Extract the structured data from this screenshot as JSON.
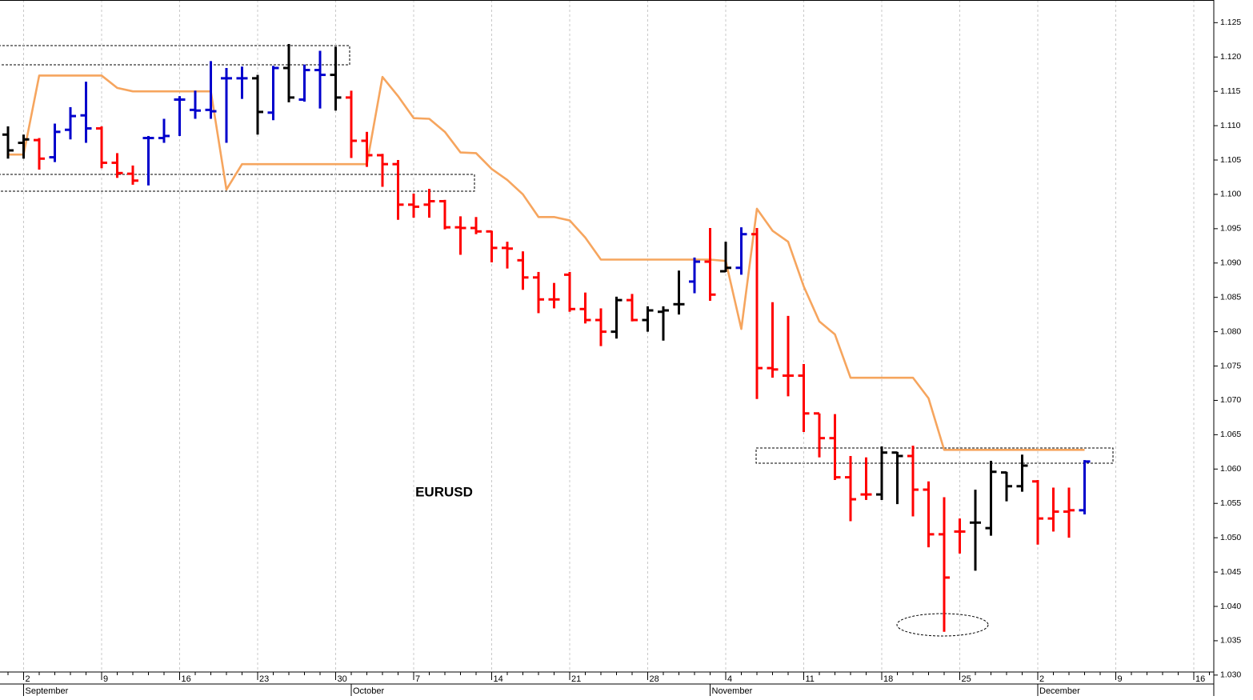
{
  "chart_data": {
    "type": "ohlc",
    "annotation": "EURUSD",
    "categories": [
      null,
      "2",
      null,
      null,
      null,
      null,
      "9",
      null,
      null,
      null,
      null,
      "16",
      null,
      null,
      null,
      null,
      "23",
      null,
      null,
      null,
      null,
      "30",
      null,
      null,
      null,
      null,
      "7",
      null,
      null,
      null,
      null,
      "14",
      null,
      null,
      null,
      null,
      "21",
      null,
      null,
      null,
      null,
      "28",
      null,
      null,
      null,
      null,
      "4",
      null,
      null,
      null,
      null,
      "11",
      null,
      null,
      null,
      null,
      "18",
      null,
      null,
      null,
      null,
      "25",
      null,
      null,
      null,
      null,
      "2",
      null,
      null,
      null,
      null,
      "9",
      null,
      null,
      null,
      null,
      "16",
      null
    ],
    "month_labels": [
      null,
      "September",
      null,
      null,
      null,
      null,
      null,
      null,
      null,
      null,
      null,
      null,
      null,
      null,
      null,
      null,
      null,
      null,
      null,
      null,
      null,
      null,
      "October",
      null,
      null,
      null,
      null,
      null,
      null,
      null,
      null,
      null,
      null,
      null,
      null,
      null,
      null,
      null,
      null,
      null,
      null,
      null,
      null,
      null,
      null,
      "November",
      null,
      null,
      null,
      null,
      null,
      null,
      null,
      null,
      null,
      null,
      null,
      null,
      null,
      null,
      null,
      null,
      null,
      null,
      null,
      null,
      "December",
      null,
      null,
      null,
      null,
      null,
      null,
      null,
      null,
      null,
      null,
      null
    ],
    "open": [
      1.1087,
      1.1075,
      1.1079,
      1.1054,
      1.1094,
      1.1115,
      1.1096,
      1.1046,
      1.103,
      1.1082,
      1.1082,
      1.1138,
      1.1123,
      1.1123,
      1.1169,
      1.1169,
      1.1169,
      1.1119,
      1.1184,
      1.1138,
      1.1181,
      1.1174,
      1.1141,
      1.1078,
      1.1057,
      1.1044,
      1.0985,
      1.0985,
      1.099,
      1.0952,
      1.0951,
      1.0946,
      1.0922,
      1.0904,
      1.0879,
      1.0847,
      1.0883,
      1.0833,
      1.0817,
      1.08,
      1.0846,
      1.0817,
      1.0829,
      1.084,
      1.0873,
      1.0902,
      1.0888,
      1.0893,
      1.0942,
      1.0747,
      1.0736,
      1.0736,
      1.0681,
      1.0645,
      1.0588,
      1.0563,
      1.0563,
      1.0624,
      1.0619,
      1.057,
      1.0505,
      1.0509,
      1.0522,
      1.0514,
      1.0595,
      1.0575,
      1.0582,
      1.0528,
      1.0538,
      1.054,
      null,
      null,
      null,
      null,
      null,
      null,
      null,
      null
    ],
    "high": [
      1.1099,
      1.1087,
      1.1082,
      1.1103,
      1.1127,
      1.1164,
      1.1099,
      1.106,
      1.1042,
      1.1085,
      1.111,
      1.1143,
      1.1151,
      1.1194,
      1.1184,
      1.1186,
      1.1174,
      1.1187,
      1.1219,
      1.1189,
      1.1209,
      1.1215,
      1.1151,
      1.1091,
      1.1059,
      1.105,
      1.1001,
      1.1008,
      1.0992,
      1.0968,
      1.0967,
      1.0947,
      1.0931,
      1.0917,
      1.0887,
      1.0871,
      1.0887,
      1.0857,
      1.0834,
      1.0851,
      1.0855,
      1.0837,
      1.0837,
      1.0889,
      1.0908,
      1.0951,
      1.0931,
      1.0952,
      1.0951,
      1.0843,
      1.0823,
      1.0753,
      1.0681,
      1.068,
      1.0619,
      1.0617,
      1.0633,
      1.0625,
      1.0634,
      1.0582,
      1.0559,
      1.0528,
      1.057,
      1.0612,
      1.0596,
      1.0621,
      1.0584,
      1.0573,
      1.0573,
      1.0613,
      null,
      null,
      null,
      null,
      null,
      null,
      null,
      null
    ],
    "low": [
      1.1052,
      1.1052,
      1.1036,
      1.1047,
      1.108,
      1.1075,
      1.1038,
      1.1024,
      1.1014,
      1.1013,
      1.1075,
      1.1085,
      1.111,
      1.111,
      1.1075,
      1.1139,
      1.1087,
      1.1108,
      1.1134,
      1.1135,
      1.1125,
      1.1122,
      1.1053,
      1.104,
      1.1011,
      1.0963,
      1.0966,
      1.0966,
      1.0949,
      1.0912,
      1.0942,
      1.0901,
      1.0892,
      1.0861,
      1.0827,
      1.0834,
      1.0829,
      1.0812,
      1.0779,
      1.079,
      1.0815,
      1.08,
      1.0787,
      1.0825,
      1.0856,
      1.0845,
      1.0887,
      1.0883,
      1.0702,
      1.0733,
      1.0706,
      1.0654,
      1.0617,
      1.0584,
      1.0524,
      1.0555,
      1.0555,
      1.0549,
      1.0531,
      1.0486,
      1.0363,
      1.0477,
      1.0452,
      1.0503,
      1.0553,
      1.0567,
      1.049,
      1.0509,
      1.05,
      1.0534,
      null,
      null,
      null,
      null,
      null,
      null,
      null,
      null
    ],
    "close": [
      1.1064,
      1.108,
      1.1052,
      1.1091,
      1.1114,
      1.1096,
      1.1046,
      1.1031,
      1.102,
      1.1082,
      1.1085,
      1.1138,
      1.1122,
      1.1121,
      1.1169,
      1.1169,
      1.112,
      1.1184,
      1.1141,
      1.1181,
      1.1174,
      1.1141,
      1.1078,
      1.1057,
      1.1044,
      1.0985,
      1.0982,
      1.099,
      1.0952,
      1.0951,
      1.0946,
      1.0922,
      1.0921,
      1.0879,
      1.0847,
      1.0847,
      1.0833,
      1.0817,
      1.08,
      1.0846,
      1.0817,
      1.0831,
      1.0831,
      1.084,
      1.0902,
      1.0854,
      1.0893,
      1.0942,
      1.0747,
      1.0745,
      1.0736,
      1.0681,
      1.0645,
      1.0588,
      1.0556,
      1.0563,
      1.0624,
      1.0619,
      1.057,
      1.0505,
      1.0442,
      1.0509,
      1.0522,
      1.0596,
      1.0575,
      1.0605,
      1.0528,
      1.0538,
      1.054,
      1.0611,
      null,
      null,
      null,
      null,
      null,
      null,
      null,
      null
    ],
    "bar_colors": [
      "#000000",
      "#000000",
      "#ff0000",
      "#0000cc",
      "#0000cc",
      "#0000cc",
      "#ff0000",
      "#ff0000",
      "#ff0000",
      "#0000cc",
      "#0000cc",
      "#0000cc",
      "#0000cc",
      "#0000cc",
      "#0000cc",
      "#0000cc",
      "#000000",
      "#0000cc",
      "#000000",
      "#0000cc",
      "#0000cc",
      "#000000",
      "#ff0000",
      "#ff0000",
      "#ff0000",
      "#ff0000",
      "#ff0000",
      "#ff0000",
      "#ff0000",
      "#ff0000",
      "#ff0000",
      "#ff0000",
      "#ff0000",
      "#ff0000",
      "#ff0000",
      "#ff0000",
      "#ff0000",
      "#ff0000",
      "#ff0000",
      "#000000",
      "#ff0000",
      "#000000",
      "#000000",
      "#000000",
      "#0000cc",
      "#ff0000",
      "#000000",
      "#0000cc",
      "#ff0000",
      "#ff0000",
      "#ff0000",
      "#ff0000",
      "#ff0000",
      "#ff0000",
      "#ff0000",
      "#ff0000",
      "#000000",
      "#000000",
      "#ff0000",
      "#ff0000",
      "#ff0000",
      "#ff0000",
      "#000000",
      "#000000",
      "#000000",
      "#000000",
      "#ff0000",
      "#ff0000",
      "#ff0000",
      "#0000cc",
      null,
      null,
      null,
      null,
      null,
      null,
      null,
      null
    ],
    "stop_line": {
      "color": "#f6a55e",
      "values": [
        1.1058,
        1.1058,
        1.1173,
        1.1173,
        1.1173,
        1.1173,
        1.1173,
        1.1155,
        1.115,
        1.115,
        1.115,
        1.115,
        1.115,
        1.115,
        1.1007,
        1.1044,
        1.1044,
        1.1044,
        1.1044,
        1.1044,
        1.1044,
        1.1044,
        1.1044,
        1.1044,
        1.1171,
        1.1143,
        1.1111,
        1.111,
        1.1091,
        1.1061,
        1.106,
        1.1037,
        1.1021,
        1.1,
        1.0967,
        1.0967,
        1.0962,
        1.0937,
        1.0905,
        1.0905,
        1.0905,
        1.0905,
        1.0905,
        1.0905,
        1.0905,
        1.0905,
        1.0903,
        1.0804,
        1.0979,
        1.0947,
        1.0931,
        1.0866,
        1.0815,
        1.0796,
        1.0733,
        1.0733,
        1.0733,
        1.0733,
        1.0733,
        1.0703,
        1.0628,
        1.0628,
        1.0628,
        1.0628,
        1.0628,
        1.0628,
        1.0628,
        1.0628,
        1.0628,
        1.0628,
        null,
        null,
        null,
        null,
        null,
        null,
        null,
        null
      ]
    },
    "ylim": [
      1.0287,
      1.1283
    ],
    "yticks": [
      {
        "value": 1.03,
        "label": "1.030"
      },
      1.035,
      {
        "value": 1.04,
        "label": "1.040"
      },
      1.045,
      {
        "value": 1.05,
        "label": "1.050"
      },
      1.055,
      {
        "value": 1.06,
        "label": "1.060"
      },
      1.065,
      {
        "value": 1.07,
        "label": "1.070"
      },
      1.075,
      {
        "value": 1.08,
        "label": "1.080"
      },
      1.085,
      {
        "value": 1.09,
        "label": "1.090"
      },
      1.095,
      {
        "value": 1.1,
        "label": "1.100"
      },
      1.105,
      {
        "value": 1.11,
        "label": "1.110"
      },
      1.115,
      {
        "value": 1.12,
        "label": "1.120"
      },
      1.125
    ],
    "grid": true
  }
}
